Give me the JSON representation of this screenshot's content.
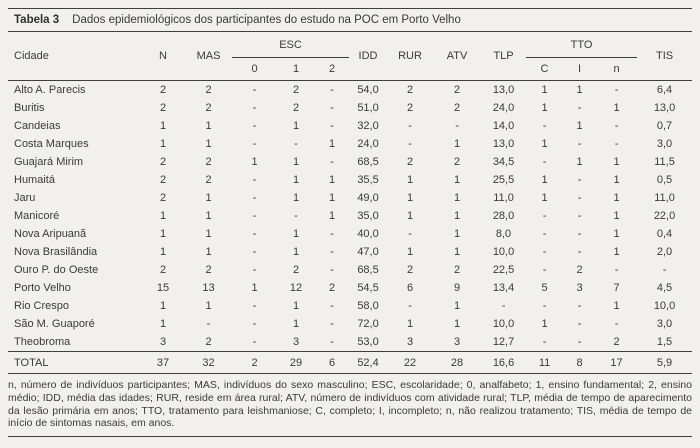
{
  "title": {
    "label": "Tabela 3",
    "text": "Dados epidemiológicos dos participantes do estudo na POC em Porto Velho"
  },
  "table": {
    "headers": {
      "cidade": "Cidade",
      "n": "N",
      "mas": "MAS",
      "esc_group": "ESC",
      "esc_sub": [
        "0",
        "1",
        "2"
      ],
      "idd": "IDD",
      "rur": "RUR",
      "atv": "ATV",
      "tlp": "TLP",
      "tto_group": "TTO",
      "tto_sub": [
        "C",
        "I",
        "n"
      ],
      "tis": "TIS"
    },
    "rows": [
      {
        "cidade": "Alto A. Parecis",
        "values": [
          "2",
          "2",
          "-",
          "2",
          "-",
          "54,0",
          "2",
          "2",
          "13,0",
          "1",
          "1",
          "-",
          "6,4"
        ]
      },
      {
        "cidade": "Buritis",
        "values": [
          "2",
          "2",
          "-",
          "2",
          "-",
          "51,0",
          "2",
          "2",
          "24,0",
          "1",
          "-",
          "1",
          "13,0"
        ]
      },
      {
        "cidade": "Candeias",
        "values": [
          "1",
          "1",
          "-",
          "1",
          "-",
          "32,0",
          "-",
          "-",
          "14,0",
          "-",
          "1",
          "-",
          "0,7"
        ]
      },
      {
        "cidade": "Costa Marques",
        "values": [
          "1",
          "1",
          "-",
          "-",
          "1",
          "24,0",
          "-",
          "1",
          "13,0",
          "1",
          "-",
          "-",
          "3,0"
        ]
      },
      {
        "cidade": "Guajará Mirim",
        "values": [
          "2",
          "2",
          "1",
          "1",
          "-",
          "68,5",
          "2",
          "2",
          "34,5",
          "-",
          "1",
          "1",
          "11,5"
        ]
      },
      {
        "cidade": "Humaitá",
        "values": [
          "2",
          "2",
          "-",
          "1",
          "1",
          "35,5",
          "1",
          "1",
          "25,5",
          "1",
          "-",
          "1",
          "0,5"
        ]
      },
      {
        "cidade": "Jaru",
        "values": [
          "2",
          "1",
          "-",
          "1",
          "1",
          "49,0",
          "1",
          "1",
          "11,0",
          "1",
          "-",
          "1",
          "11,0"
        ]
      },
      {
        "cidade": "Manicoré",
        "values": [
          "1",
          "1",
          "-",
          "-",
          "1",
          "35,0",
          "1",
          "1",
          "28,0",
          "-",
          "-",
          "1",
          "22,0"
        ]
      },
      {
        "cidade": "Nova Aripuanã",
        "values": [
          "1",
          "1",
          "-",
          "1",
          "-",
          "40,0",
          "-",
          "1",
          "8,0",
          "-",
          "-",
          "1",
          "0,4"
        ]
      },
      {
        "cidade": "Nova Brasilândia",
        "values": [
          "1",
          "1",
          "-",
          "1",
          "-",
          "47,0",
          "1",
          "1",
          "10,0",
          "-",
          "-",
          "1",
          "2,0"
        ]
      },
      {
        "cidade": "Ouro P. do Oeste",
        "values": [
          "2",
          "2",
          "-",
          "2",
          "-",
          "68,5",
          "2",
          "2",
          "22,5",
          "-",
          "2",
          "-",
          "-"
        ]
      },
      {
        "cidade": "Porto Velho",
        "values": [
          "15",
          "13",
          "1",
          "12",
          "2",
          "54,5",
          "6",
          "9",
          "13,4",
          "5",
          "3",
          "7",
          "4,5"
        ]
      },
      {
        "cidade": "Rio Crespo",
        "values": [
          "1",
          "1",
          "-",
          "1",
          "-",
          "58,0",
          "-",
          "1",
          "-",
          "-",
          "-",
          "1",
          "10,0"
        ]
      },
      {
        "cidade": "São M. Guaporé",
        "values": [
          "1",
          "-",
          "-",
          "1",
          "-",
          "72,0",
          "1",
          "1",
          "10,0",
          "1",
          "-",
          "-",
          "3,0"
        ]
      },
      {
        "cidade": "Theobroma",
        "values": [
          "3",
          "2",
          "-",
          "3",
          "-",
          "53,0",
          "3",
          "3",
          "12,7",
          "-",
          "-",
          "2",
          "1,5"
        ]
      }
    ],
    "total": {
      "cidade": "TOTAL",
      "values": [
        "37",
        "32",
        "2",
        "29",
        "6",
        "52,4",
        "22",
        "28",
        "16,6",
        "11",
        "8",
        "17",
        "5,9"
      ]
    }
  },
  "footnote": "n, número de indivíduos participantes; MAS, indivíduos do sexo masculino; ESC, escolaridade; 0, analfabeto; 1, ensino fundamental; 2, ensino médio; IDD, média das idades; RUR, reside em área rural; ATV, número de indivíduos com atividade rural; TLP, média de tempo de aparecimento da lesão primária em anos; TTO, tratamento para leishmaniose; C, completo; I, incompleto; n, não realizou tratamento; TIS, média de tempo de início de sintomas nasais, em anos.",
  "colors": {
    "background": "#f1f0ec",
    "rule": "#3f3f3f",
    "text": "#3a3a3a"
  }
}
